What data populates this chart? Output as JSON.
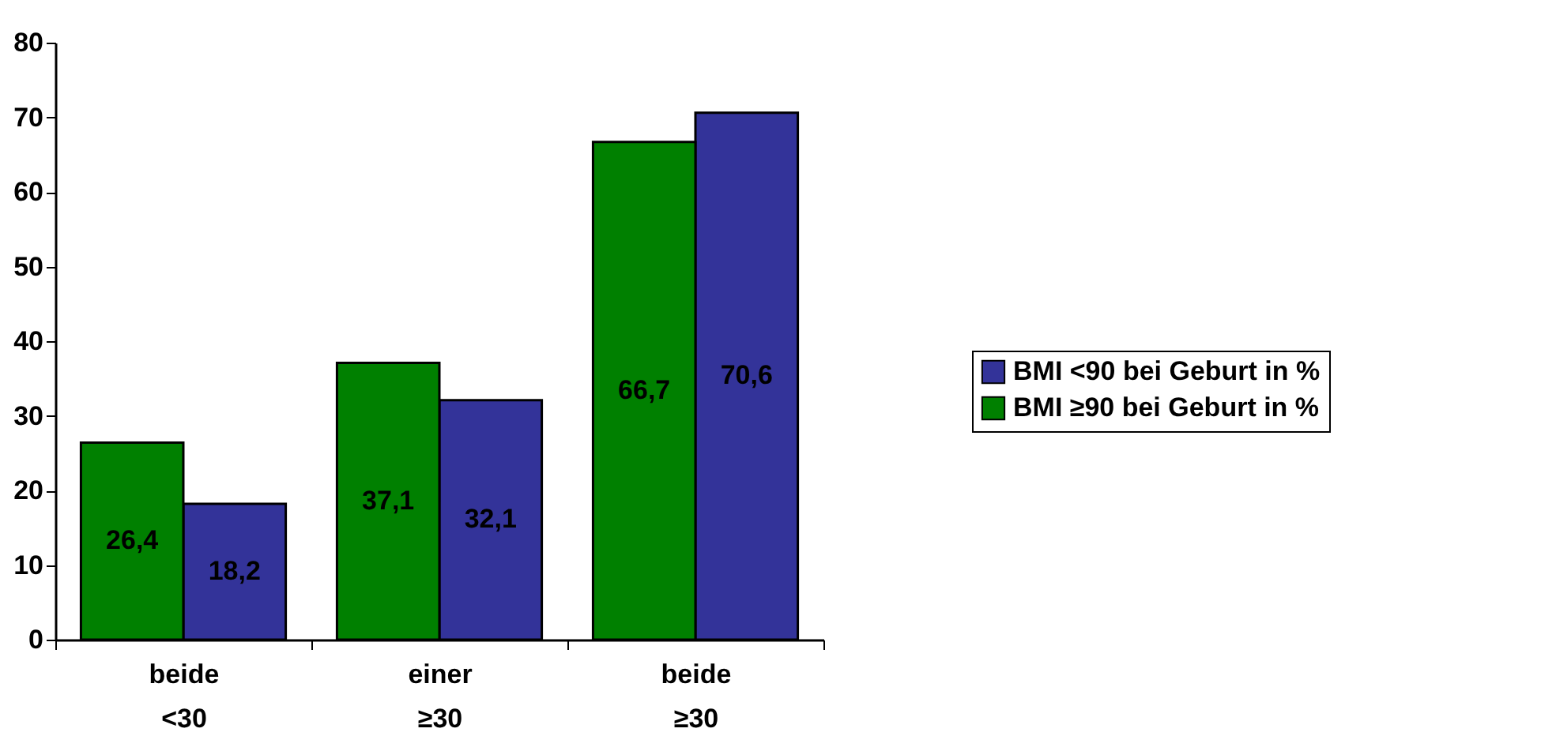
{
  "chart_data": {
    "type": "bar",
    "categories": [
      "beide <30",
      "einer ≥30",
      "beide ≥30"
    ],
    "series": [
      {
        "name": "BMI <90 bei Geburt in %",
        "color": "#333399",
        "values": [
          18.2,
          32.1,
          70.6
        ],
        "value_labels": [
          "18,2",
          "32,1",
          "70,6"
        ]
      },
      {
        "name": "BMI ≥90 bei Geburt in %",
        "color": "#008000",
        "values": [
          26.4,
          37.1,
          66.7
        ],
        "value_labels": [
          "26,4",
          "37,1",
          "66,7"
        ]
      }
    ],
    "ylim": [
      0,
      80
    ],
    "yticks": [
      0,
      10,
      20,
      30,
      40,
      50,
      60,
      70,
      80
    ],
    "grid": false,
    "legend": "right"
  }
}
